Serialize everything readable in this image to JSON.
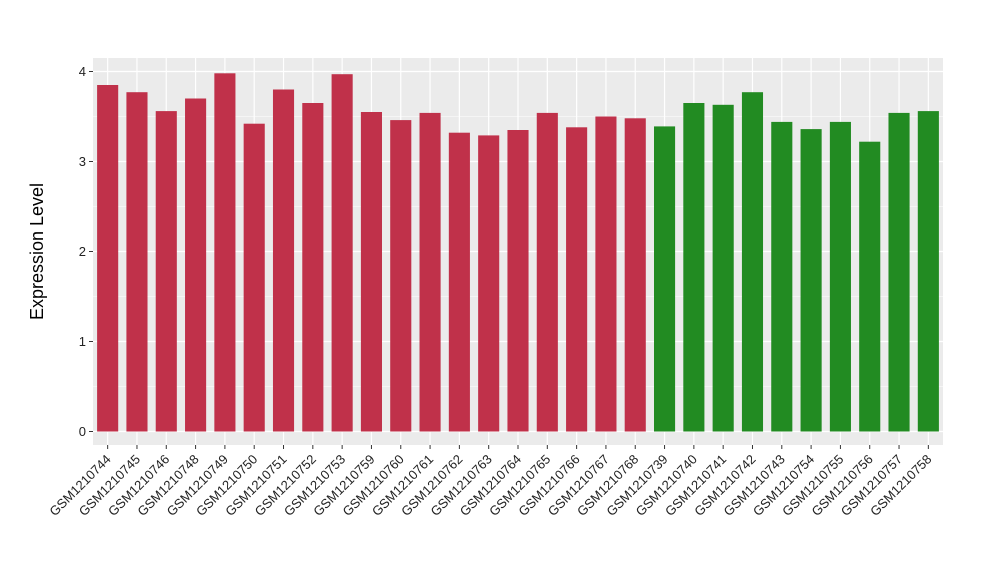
{
  "chart_data": {
    "type": "bar",
    "ylabel": "Expression Level",
    "xlabel": "",
    "ylim": [
      -0.15,
      4.15
    ],
    "yticks": [
      0,
      1,
      2,
      3,
      4
    ],
    "grid": true,
    "colors": {
      "group_a": "#C0314A",
      "group_b": "#228B22",
      "panel_bg": "#EBEBEB",
      "grid": "#FFFFFF"
    },
    "categories": [
      "GSM1210744",
      "GSM1210745",
      "GSM1210746",
      "GSM1210748",
      "GSM1210749",
      "GSM1210750",
      "GSM1210751",
      "GSM1210752",
      "GSM1210753",
      "GSM1210759",
      "GSM1210760",
      "GSM1210761",
      "GSM1210762",
      "GSM1210763",
      "GSM1210764",
      "GSM1210765",
      "GSM1210766",
      "GSM1210767",
      "GSM1210768",
      "GSM1210739",
      "GSM1210740",
      "GSM1210741",
      "GSM1210742",
      "GSM1210743",
      "GSM1210754",
      "GSM1210755",
      "GSM1210756",
      "GSM1210757",
      "GSM1210758"
    ],
    "values": [
      3.85,
      3.77,
      3.56,
      3.7,
      3.98,
      3.42,
      3.8,
      3.65,
      3.97,
      3.55,
      3.46,
      3.54,
      3.32,
      3.29,
      3.35,
      3.54,
      3.38,
      3.5,
      3.48,
      3.39,
      3.65,
      3.63,
      3.77,
      3.44,
      3.36,
      3.44,
      3.22,
      3.54,
      3.56
    ],
    "groups": [
      "a",
      "a",
      "a",
      "a",
      "a",
      "a",
      "a",
      "a",
      "a",
      "a",
      "a",
      "a",
      "a",
      "a",
      "a",
      "a",
      "a",
      "a",
      "a",
      "b",
      "b",
      "b",
      "b",
      "b",
      "b",
      "b",
      "b",
      "b",
      "b"
    ]
  }
}
